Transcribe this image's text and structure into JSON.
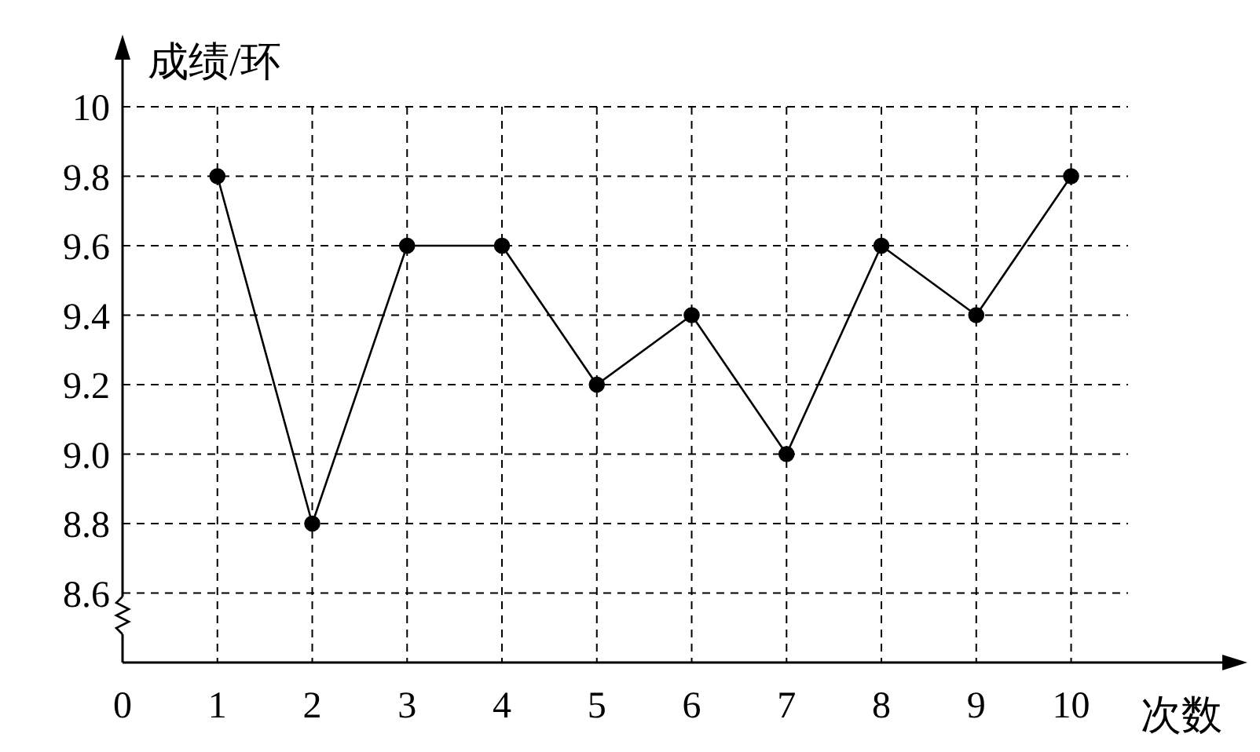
{
  "chart_data": {
    "type": "line",
    "xlabel": "次数",
    "ylabel": "成绩/环",
    "x": [
      1,
      2,
      3,
      4,
      5,
      6,
      7,
      8,
      9,
      10
    ],
    "series": [
      {
        "color": "#000000",
        "values": [
          9.8,
          8.8,
          9.6,
          9.6,
          9.2,
          9.4,
          9.0,
          9.6,
          9.4,
          9.8
        ]
      }
    ],
    "xlim": [
      0,
      10.6
    ],
    "xticks": [
      0,
      1,
      2,
      3,
      4,
      5,
      6,
      7,
      8,
      9,
      10
    ],
    "ylim": [
      8.4,
      10
    ],
    "yticks": [
      8.6,
      8.8,
      {
        "value": 9,
        "label": "9.0"
      },
      9.2,
      9.4,
      9.6,
      9.8,
      10
    ],
    "grid": true,
    "marker": "circle",
    "line_style": "solid"
  }
}
